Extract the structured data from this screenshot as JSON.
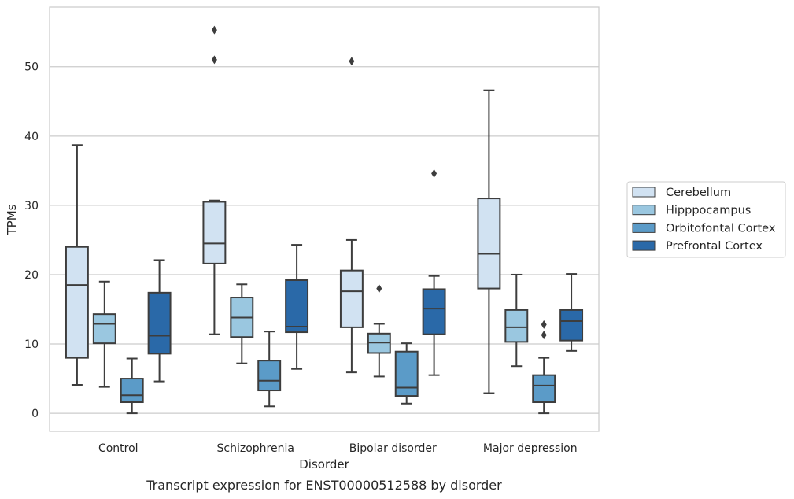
{
  "caption": "Transcript expression for ENST00000512588 by disorder",
  "chart_data": {
    "type": "box",
    "xlabel": "Disorder",
    "ylabel": "TPMs",
    "ylim": [
      -2.6,
      58.6
    ],
    "yticks": [
      0,
      10,
      20,
      30,
      40,
      50
    ],
    "grid": "horizontal",
    "legend_position": "right",
    "categories": [
      "Control",
      "Schizophrenia",
      "Bipolar disorder",
      "Major depression"
    ],
    "series": [
      {
        "name": "Cerebellum",
        "color": "#d1e2f2",
        "boxes": [
          {
            "whislo": 4.1,
            "q1": 8.0,
            "med": 18.5,
            "q3": 24.0,
            "whishi": 38.7,
            "fliers": []
          },
          {
            "whislo": 11.4,
            "q1": 21.6,
            "med": 24.5,
            "q3": 30.5,
            "whishi": 30.7,
            "fliers": [
              51.0,
              55.3
            ]
          },
          {
            "whislo": 5.9,
            "q1": 12.4,
            "med": 17.6,
            "q3": 20.6,
            "whishi": 25.0,
            "fliers": [
              50.8
            ]
          },
          {
            "whislo": 2.9,
            "q1": 18.0,
            "med": 23.0,
            "q3": 31.0,
            "whishi": 46.6,
            "fliers": []
          }
        ]
      },
      {
        "name": "Hipppocampus",
        "color": "#9ac7e0",
        "boxes": [
          {
            "whislo": 3.8,
            "q1": 10.1,
            "med": 12.9,
            "q3": 14.3,
            "whishi": 19.0,
            "fliers": []
          },
          {
            "whislo": 7.2,
            "q1": 11.0,
            "med": 13.8,
            "q3": 16.7,
            "whishi": 18.6,
            "fliers": []
          },
          {
            "whislo": 5.3,
            "q1": 8.7,
            "med": 10.2,
            "q3": 11.5,
            "whishi": 12.9,
            "fliers": [
              18.0
            ]
          },
          {
            "whislo": 6.8,
            "q1": 10.3,
            "med": 12.4,
            "q3": 14.9,
            "whishi": 20.0,
            "fliers": []
          }
        ]
      },
      {
        "name": "Orbitofontal Cortex",
        "color": "#5b9bc8",
        "boxes": [
          {
            "whislo": 0.0,
            "q1": 1.6,
            "med": 2.6,
            "q3": 5.0,
            "whishi": 7.9,
            "fliers": []
          },
          {
            "whislo": 1.0,
            "q1": 3.3,
            "med": 4.7,
            "q3": 7.6,
            "whishi": 11.8,
            "fliers": []
          },
          {
            "whislo": 1.4,
            "q1": 2.5,
            "med": 3.7,
            "q3": 8.9,
            "whishi": 10.1,
            "fliers": []
          },
          {
            "whislo": 0.0,
            "q1": 1.6,
            "med": 4.0,
            "q3": 5.5,
            "whishi": 8.0,
            "fliers": [
              11.3,
              12.8
            ]
          }
        ]
      },
      {
        "name": "Prefrontal Cortex",
        "color": "#2a69a8",
        "boxes": [
          {
            "whislo": 4.6,
            "q1": 8.6,
            "med": 11.2,
            "q3": 17.4,
            "whishi": 22.1,
            "fliers": []
          },
          {
            "whislo": 6.4,
            "q1": 11.7,
            "med": 12.5,
            "q3": 19.2,
            "whishi": 24.3,
            "fliers": []
          },
          {
            "whislo": 5.5,
            "q1": 11.4,
            "med": 15.1,
            "q3": 17.9,
            "whishi": 19.8,
            "fliers": [
              34.6
            ]
          },
          {
            "whislo": 9.0,
            "q1": 10.5,
            "med": 13.3,
            "q3": 14.9,
            "whishi": 20.1,
            "fliers": []
          }
        ]
      }
    ]
  }
}
